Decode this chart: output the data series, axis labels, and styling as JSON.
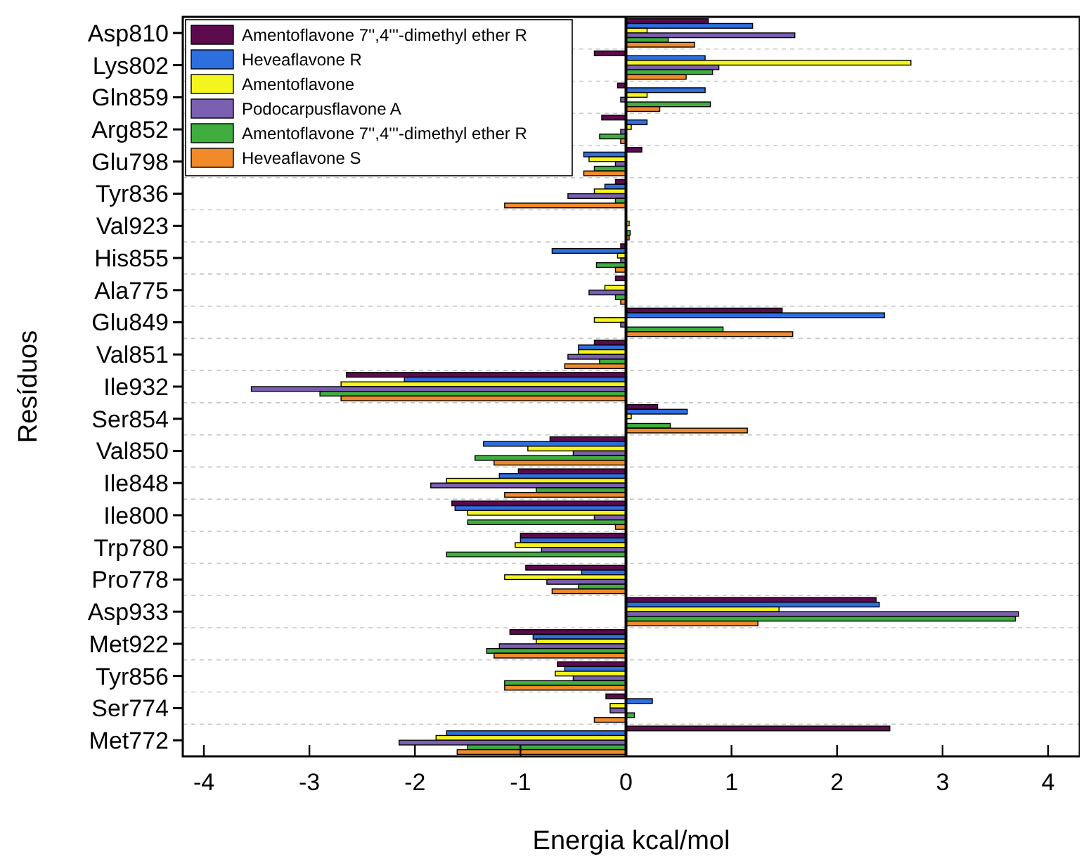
{
  "chart_data": {
    "type": "bar",
    "orientation": "horizontal",
    "xlabel": "Energia kcal/mol",
    "ylabel": "Resíduos",
    "categories": [
      "Asp810",
      "Lys802",
      "Gln859",
      "Arg852",
      "Glu798",
      "Tyr836",
      "Val923",
      "His855",
      "Ala775",
      "Glu849",
      "Val851",
      "Ile932",
      "Ser854",
      "Val850",
      "Ile848",
      "Ile800",
      "Trp780",
      "Pro778",
      "Asp933",
      "Met922",
      "Tyr856",
      "Ser774",
      "Met772"
    ],
    "xlim": [
      -4.2,
      4.3
    ],
    "xticks": [
      -4,
      -3,
      -2,
      -1,
      0,
      1,
      2,
      3,
      4
    ],
    "grid": "y",
    "legend": "top left",
    "series": [
      {
        "name": "Amentoflavone 7'',4'''-dimethyl ether R",
        "color": "#5c0a4e",
        "values": [
          0.78,
          -0.3,
          -0.08,
          -0.23,
          0.15,
          -0.1,
          0.0,
          -0.05,
          -0.1,
          1.48,
          -0.3,
          -2.65,
          0.3,
          -0.72,
          -1.02,
          -1.65,
          -1.0,
          -0.95,
          2.37,
          -1.1,
          -0.65,
          -0.19,
          2.5
        ]
      },
      {
        "name": "Heveaflavone R",
        "color": "#2e6fe0",
        "values": [
          1.2,
          0.75,
          0.75,
          0.2,
          -0.4,
          -0.2,
          0.0,
          -0.7,
          null,
          2.45,
          -0.45,
          -2.1,
          0.58,
          -1.35,
          -1.2,
          -1.62,
          -1.0,
          -0.42,
          2.4,
          -0.88,
          -0.58,
          0.25,
          -1.7
        ]
      },
      {
        "name": "Amentoflavone",
        "color": "#f5f51e",
        "values": [
          0.2,
          2.7,
          0.2,
          0.05,
          -0.35,
          -0.3,
          0.03,
          -0.08,
          -0.2,
          -0.3,
          -0.45,
          -2.7,
          0.05,
          -0.93,
          -1.7,
          -1.5,
          -1.05,
          -1.15,
          1.45,
          -0.85,
          -0.67,
          -0.15,
          -1.8
        ]
      },
      {
        "name": "Podocarpusflavone A",
        "color": "#7b5fb0",
        "values": [
          1.6,
          0.88,
          -0.05,
          -0.05,
          -0.1,
          -0.55,
          0.0,
          -0.05,
          -0.35,
          -0.05,
          -0.55,
          -3.55,
          null,
          -0.5,
          -1.85,
          -0.3,
          -0.8,
          -0.75,
          3.72,
          -1.2,
          -0.5,
          -0.15,
          -2.15
        ]
      },
      {
        "name": "Amentoflavone 7'',4'''-dimethyl ether R",
        "color": "#3fae3f",
        "values": [
          0.4,
          0.82,
          0.8,
          -0.25,
          -0.3,
          -0.1,
          0.04,
          -0.28,
          -0.1,
          0.92,
          -0.25,
          -2.9,
          0.42,
          -1.43,
          -0.85,
          -1.5,
          -1.7,
          -0.45,
          3.69,
          -1.32,
          -1.15,
          0.08,
          -1.5
        ]
      },
      {
        "name": "Heveaflavone S",
        "color": "#f08a2a",
        "values": [
          0.65,
          0.57,
          0.32,
          -0.05,
          -0.4,
          -1.15,
          0.03,
          -0.1,
          -0.05,
          1.58,
          -0.58,
          -2.7,
          1.15,
          -1.25,
          -1.15,
          -0.1,
          0.0,
          -0.7,
          1.25,
          -1.25,
          -1.15,
          -0.3,
          -1.6
        ]
      }
    ]
  }
}
